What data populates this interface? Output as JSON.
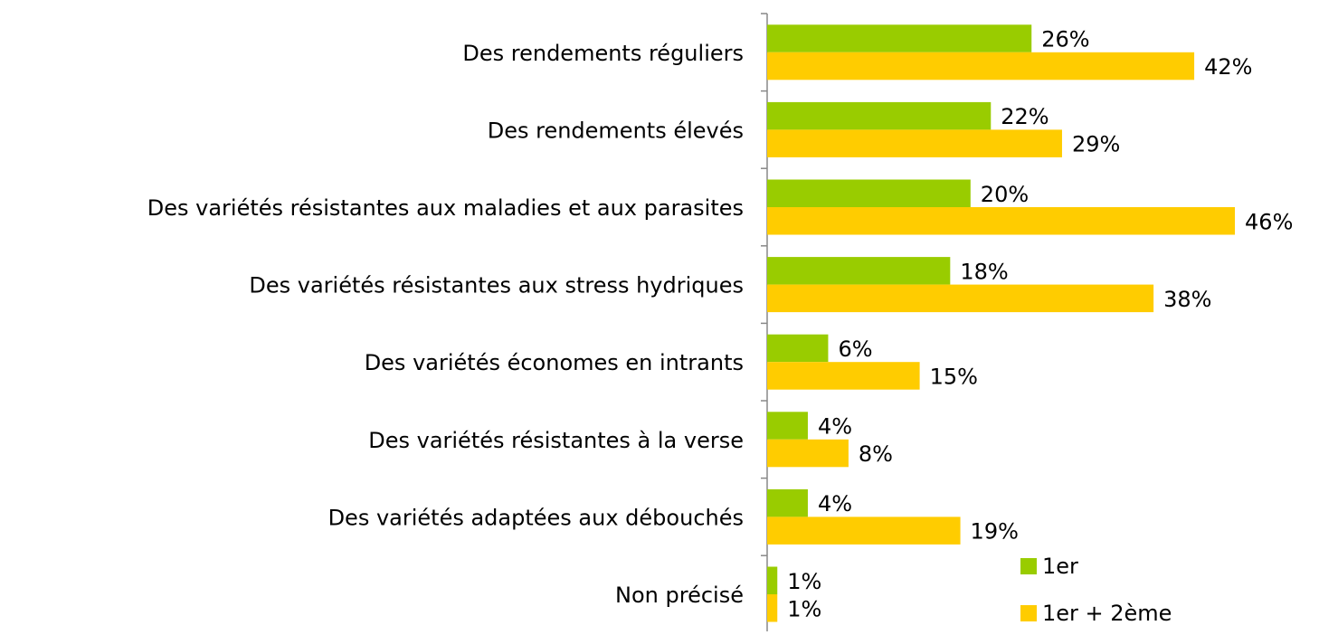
{
  "chart_data": {
    "type": "bar",
    "orientation": "horizontal",
    "categories": [
      "Des rendements réguliers",
      "Des rendements élevés",
      "Des variétés résistantes aux maladies et aux parasites",
      "Des variétés résistantes aux stress hydriques",
      "Des variétés économes en intrants",
      "Des variétés résistantes à la verse",
      "Des variétés adaptées aux débouchés",
      "Non précisé"
    ],
    "series": [
      {
        "name": "1er",
        "color": "#99cc00",
        "values": [
          26,
          22,
          20,
          18,
          6,
          4,
          4,
          1
        ],
        "value_labels": [
          "26%",
          "22%",
          "20%",
          "18%",
          "6%",
          "4%",
          "4%",
          "1%"
        ]
      },
      {
        "name": "1er + 2ème",
        "color": "#ffcc00",
        "values": [
          42,
          29,
          46,
          38,
          15,
          8,
          19,
          1
        ],
        "value_labels": [
          "42%",
          "29%",
          "46%",
          "38%",
          "15%",
          "8%",
          "19%",
          "1%"
        ]
      }
    ],
    "legend": "bottom-right"
  }
}
